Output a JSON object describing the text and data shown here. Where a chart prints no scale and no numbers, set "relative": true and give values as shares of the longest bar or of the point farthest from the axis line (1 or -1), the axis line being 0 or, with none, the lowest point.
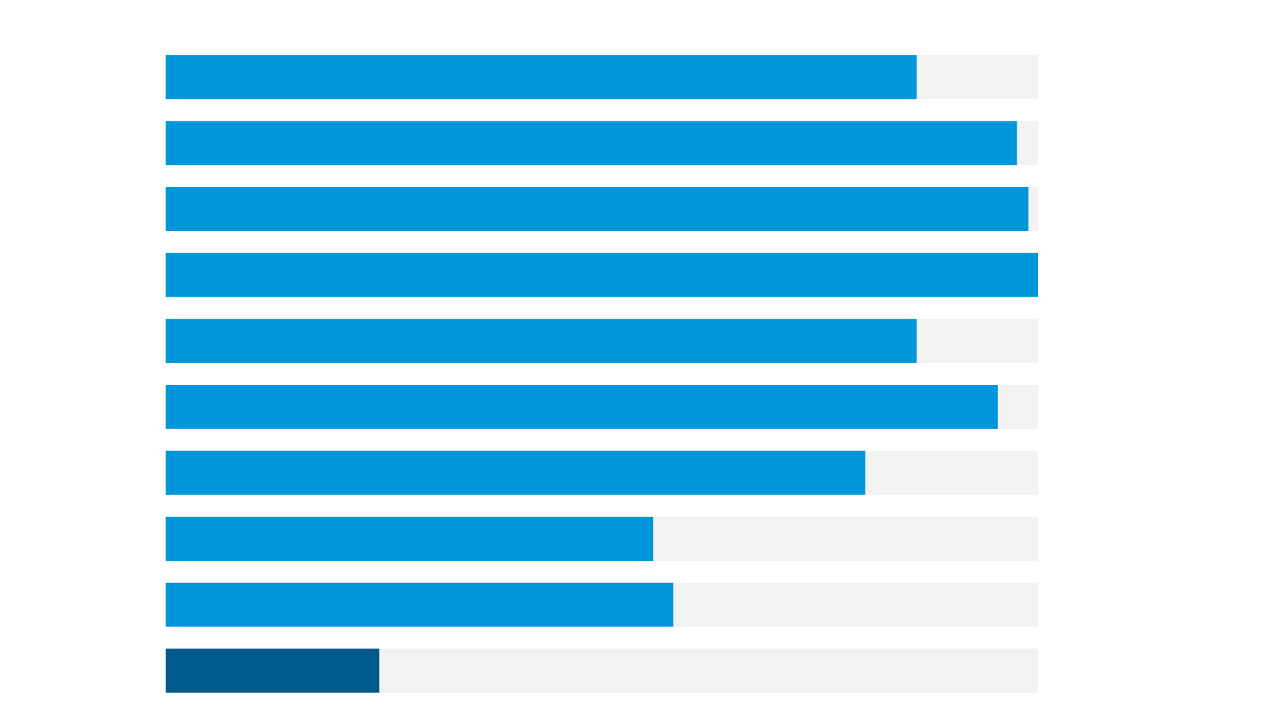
{
  "chart_data": {
    "type": "bar",
    "orientation": "horizontal",
    "relative": true,
    "stacked": true,
    "categories": [
      null,
      null,
      null,
      null,
      null,
      null,
      null,
      null,
      null,
      null
    ],
    "series": [
      {
        "values": [
          0.861,
          0.976,
          0.989,
          1,
          0.861,
          0.954,
          0.802,
          0.559,
          0.582,
          0.245
        ],
        "colors": [
          "#0096db",
          "#0096db",
          "#0096db",
          "#0096db",
          "#0096db",
          "#0096db",
          "#0096db",
          "#0096db",
          "#0096db",
          "#005a8c"
        ]
      },
      {
        "values": [
          0.139,
          0.024,
          0.011,
          0,
          0.139,
          0.046,
          0.198,
          0.441,
          0.418,
          0.755
        ],
        "color": "#f2f2f2"
      }
    ]
  }
}
